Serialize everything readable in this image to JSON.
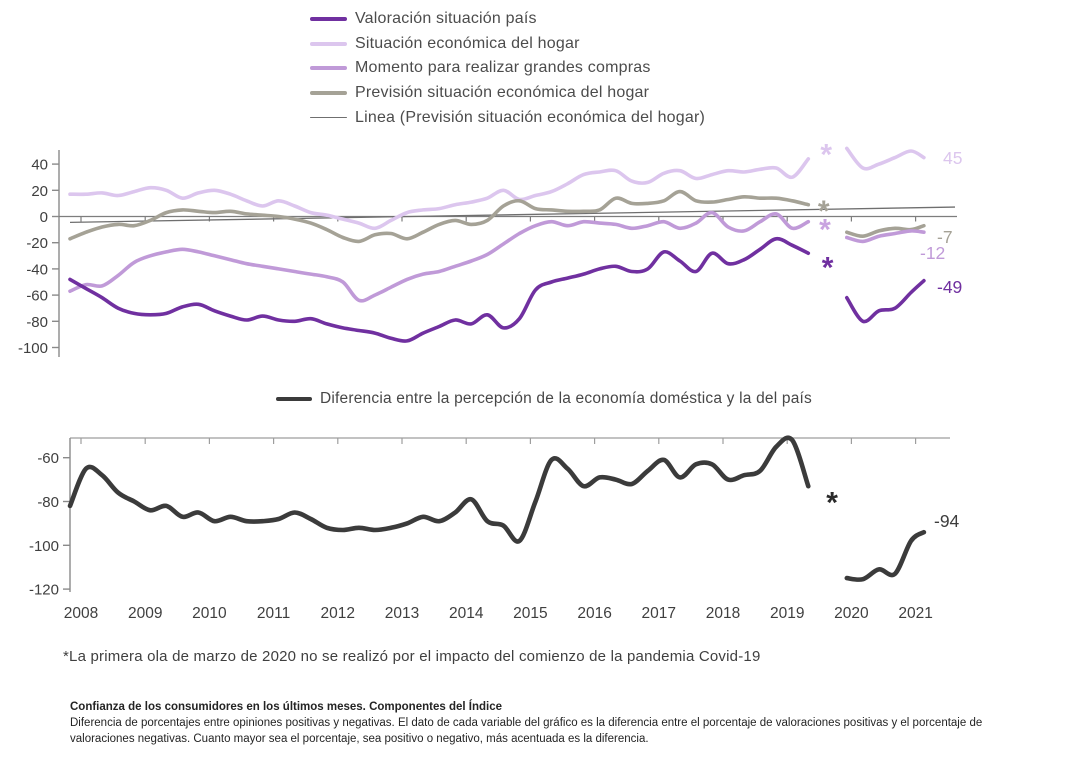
{
  "footnote": "*La primera ola de marzo de 2020 no se realizó por el impacto del comienzo de la pandemia Covid-19",
  "caption": {
    "title": "Confianza de los consumidores en los últimos meses. Componentes del Índice",
    "body": "Diferencia de porcentajes entre opiniones positivas y negativas. El dato de cada variable del gráfico es la diferencia entre el porcentaje de valoraciones positivas y el porcentaje de valoraciones negativas. Cuanto mayor sea el porcentaje, sea positivo o negativo, más acentuada es la diferencia."
  },
  "chart_data": {
    "type": "line",
    "x_tick_labels": [
      "2008",
      "2009",
      "2010",
      "2011",
      "2012",
      "2013",
      "2014",
      "2015",
      "2016",
      "2017",
      "2018",
      "2019",
      "2020",
      "2021"
    ],
    "x_pre": [
      2008,
      2008.25,
      2008.5,
      2008.75,
      2009,
      2009.25,
      2009.5,
      2009.75,
      2010,
      2010.25,
      2010.5,
      2010.75,
      2011,
      2011.25,
      2011.5,
      2011.75,
      2012,
      2012.25,
      2012.5,
      2012.75,
      2013,
      2013.25,
      2013.5,
      2013.75,
      2014,
      2014.25,
      2014.5,
      2014.75,
      2015,
      2015.25,
      2015.5,
      2015.75,
      2016,
      2016.25,
      2016.5,
      2016.75,
      2017,
      2017.25,
      2017.5,
      2017.75,
      2018,
      2018.25,
      2018.5,
      2018.75,
      2019,
      2019.25,
      2019.5
    ],
    "x_post": [
      2020.1,
      2020.35,
      2020.6,
      2020.85,
      2021.1,
      2021.3
    ],
    "top": {
      "y_ticks": [
        40,
        20,
        0,
        -20,
        -40,
        -60,
        -80,
        -100
      ],
      "series": [
        {
          "name": "Valoración situación país",
          "color": "#7030a0",
          "pre": [
            -48,
            -55,
            -62,
            -70,
            -74,
            -75,
            -74,
            -69,
            -67,
            -72,
            -76,
            -79,
            -76,
            -79,
            -80,
            -78,
            -82,
            -85,
            -87,
            -89,
            -93,
            -95,
            -89,
            -84,
            -79,
            -82,
            -75,
            -85,
            -78,
            -56,
            -50,
            -47,
            -44,
            -40,
            -38,
            -42,
            -40,
            -27,
            -34,
            -42,
            -28,
            -36,
            -33,
            -25,
            -17,
            -22,
            -28
          ],
          "post": [
            -62,
            -80,
            -72,
            -70,
            -58,
            -49
          ],
          "end_label": "-49"
        },
        {
          "name": "Situación económica del hogar",
          "color": "#dcc6ee",
          "pre": [
            17,
            17,
            18,
            16,
            19,
            22,
            20,
            14,
            18,
            20,
            17,
            12,
            8,
            12,
            8,
            3,
            1,
            -2,
            -5,
            -9,
            -3,
            3,
            5,
            6,
            9,
            11,
            14,
            20,
            13,
            16,
            19,
            25,
            32,
            34,
            35,
            27,
            26,
            33,
            35,
            29,
            32,
            35,
            34,
            36,
            37,
            30,
            44
          ],
          "post": [
            52,
            37,
            40,
            45,
            50,
            45
          ],
          "end_label": "45"
        },
        {
          "name": "Momento para realizar grandes compras",
          "color": "#c09ad8",
          "pre": [
            -57,
            -52,
            -53,
            -45,
            -35,
            -30,
            -27,
            -25,
            -27,
            -30,
            -33,
            -36,
            -38,
            -40,
            -42,
            -44,
            -46,
            -50,
            -64,
            -60,
            -54,
            -48,
            -44,
            -42,
            -38,
            -34,
            -29,
            -21,
            -13,
            -7,
            -4,
            -7,
            -4,
            -5,
            -6,
            -9,
            -7,
            -4,
            -9,
            -5,
            3,
            -8,
            -11,
            -4,
            2,
            -9,
            -4
          ],
          "post": [
            -16,
            -19,
            -15,
            -13,
            -11,
            -12
          ],
          "end_label": "-12"
        },
        {
          "name": "Previsión situación económica del hogar",
          "color": "#a5a296",
          "pre": [
            -17,
            -12,
            -8,
            -6,
            -7,
            -3,
            3,
            5,
            4,
            3,
            4,
            2,
            1,
            0,
            -2,
            -5,
            -10,
            -16,
            -19,
            -14,
            -13,
            -17,
            -12,
            -6,
            -3,
            -6,
            -3,
            8,
            12,
            6,
            5,
            4,
            4,
            5,
            14,
            10,
            10,
            12,
            19,
            12,
            11,
            13,
            15,
            14,
            14,
            12,
            9
          ],
          "post": [
            -12,
            -15,
            -11,
            -9,
            -10,
            -7
          ],
          "end_label": "-7"
        }
      ],
      "trend": {
        "name": "Linea (Previsión situación económica del hogar)",
        "color": "#6f6f6f",
        "x": [
          2008,
          2021.55
        ],
        "values": [
          -4.5,
          7.2
        ]
      },
      "asterisks": [
        {
          "color": "#dcc6ee",
          "year": 2019.78,
          "value": 48
        },
        {
          "color": "#a5a296",
          "year": 2019.74,
          "value": 5
        },
        {
          "color": "#c9a3e0",
          "year": 2019.76,
          "value": -9
        },
        {
          "color": "#7030a0",
          "year": 2019.8,
          "value": -38
        }
      ]
    },
    "bottom": {
      "name": "Diferencia entre la percepción de la economía doméstica y la del país",
      "color": "#3b3b3b",
      "y_ticks": [
        -60,
        -80,
        -100,
        -120
      ],
      "pre": [
        -82,
        -65,
        -68,
        -76,
        -80,
        -84,
        -82,
        -87,
        -85,
        -89,
        -87,
        -89,
        -89,
        -88,
        -85,
        -88,
        -92,
        -93,
        -92,
        -93,
        -92,
        -90,
        -87,
        -89,
        -85,
        -79,
        -89,
        -91,
        -98,
        -80,
        -61,
        -65,
        -73,
        -69,
        -70,
        -72,
        -66,
        -61,
        -69,
        -63,
        -63,
        -70,
        -68,
        -66,
        -55,
        -52,
        -73
      ],
      "post": [
        -115,
        -115.5,
        -111,
        -113,
        -98,
        -94
      ],
      "end_label": "-94",
      "asterisk": {
        "year": 2019.87,
        "value": -80
      }
    }
  }
}
